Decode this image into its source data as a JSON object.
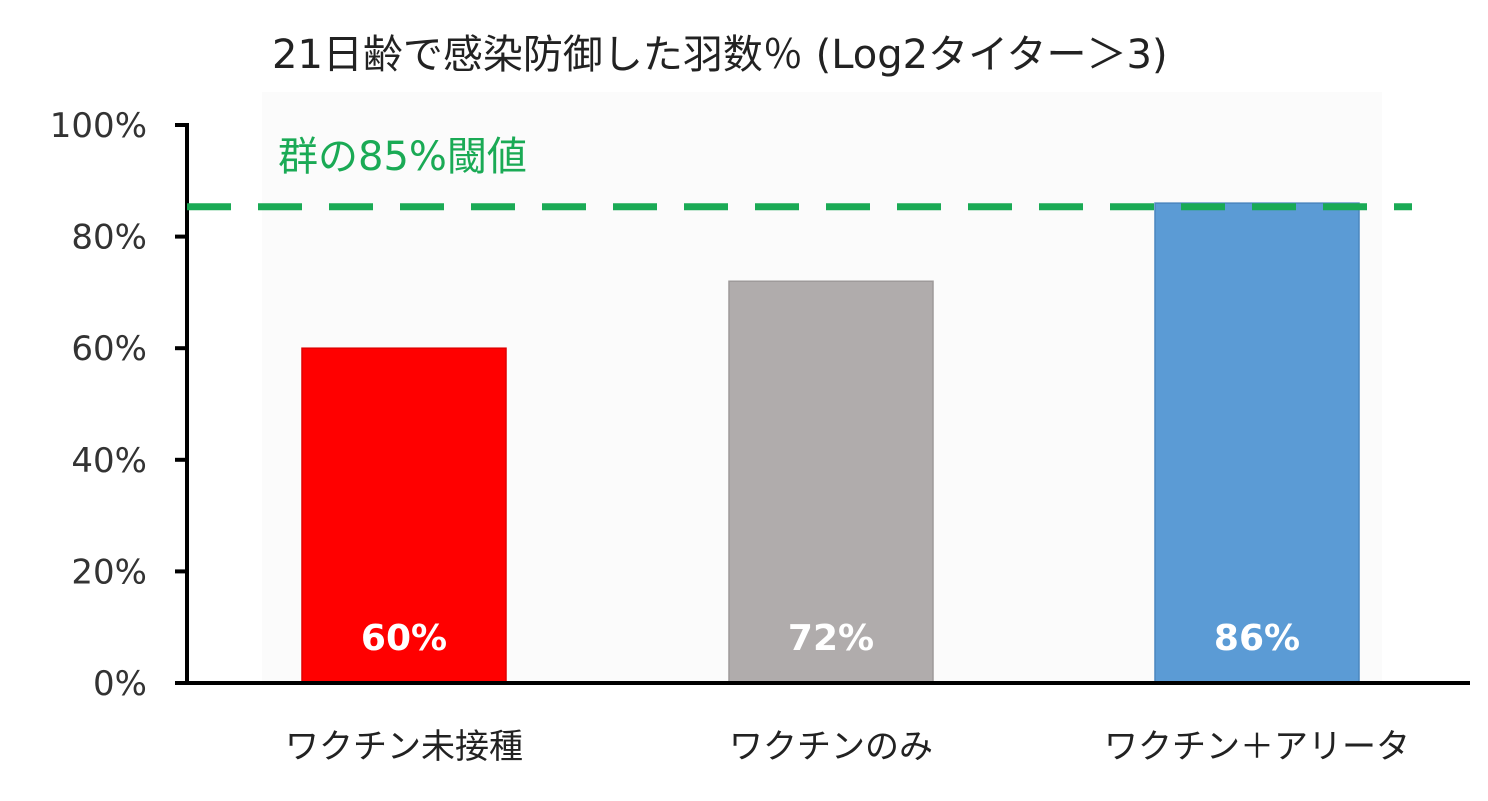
{
  "chart_data": {
    "type": "bar",
    "title": "21日齢で感染防御した羽数％ (Log2タイター＞3)",
    "categories": [
      "ワクチン未接種",
      "ワクチンのみ",
      "ワクチン＋アリータ"
    ],
    "values": [
      60,
      72,
      86
    ],
    "data_labels": [
      "60%",
      "72%",
      "86%"
    ],
    "bar_colors": [
      "#ff0000",
      "#b0acac",
      "#5b9bd5"
    ],
    "ylim": [
      0,
      100
    ],
    "yticks": [
      0,
      20,
      40,
      60,
      80,
      100
    ],
    "ytick_labels": [
      "0%",
      "20%",
      "40%",
      "60%",
      "80%",
      "100%"
    ],
    "xlabel": "",
    "ylabel": "",
    "grid": false,
    "threshold": {
      "value": 85,
      "label": "群の85%閾値",
      "color": "#1aaa55",
      "style": "dashed"
    }
  }
}
